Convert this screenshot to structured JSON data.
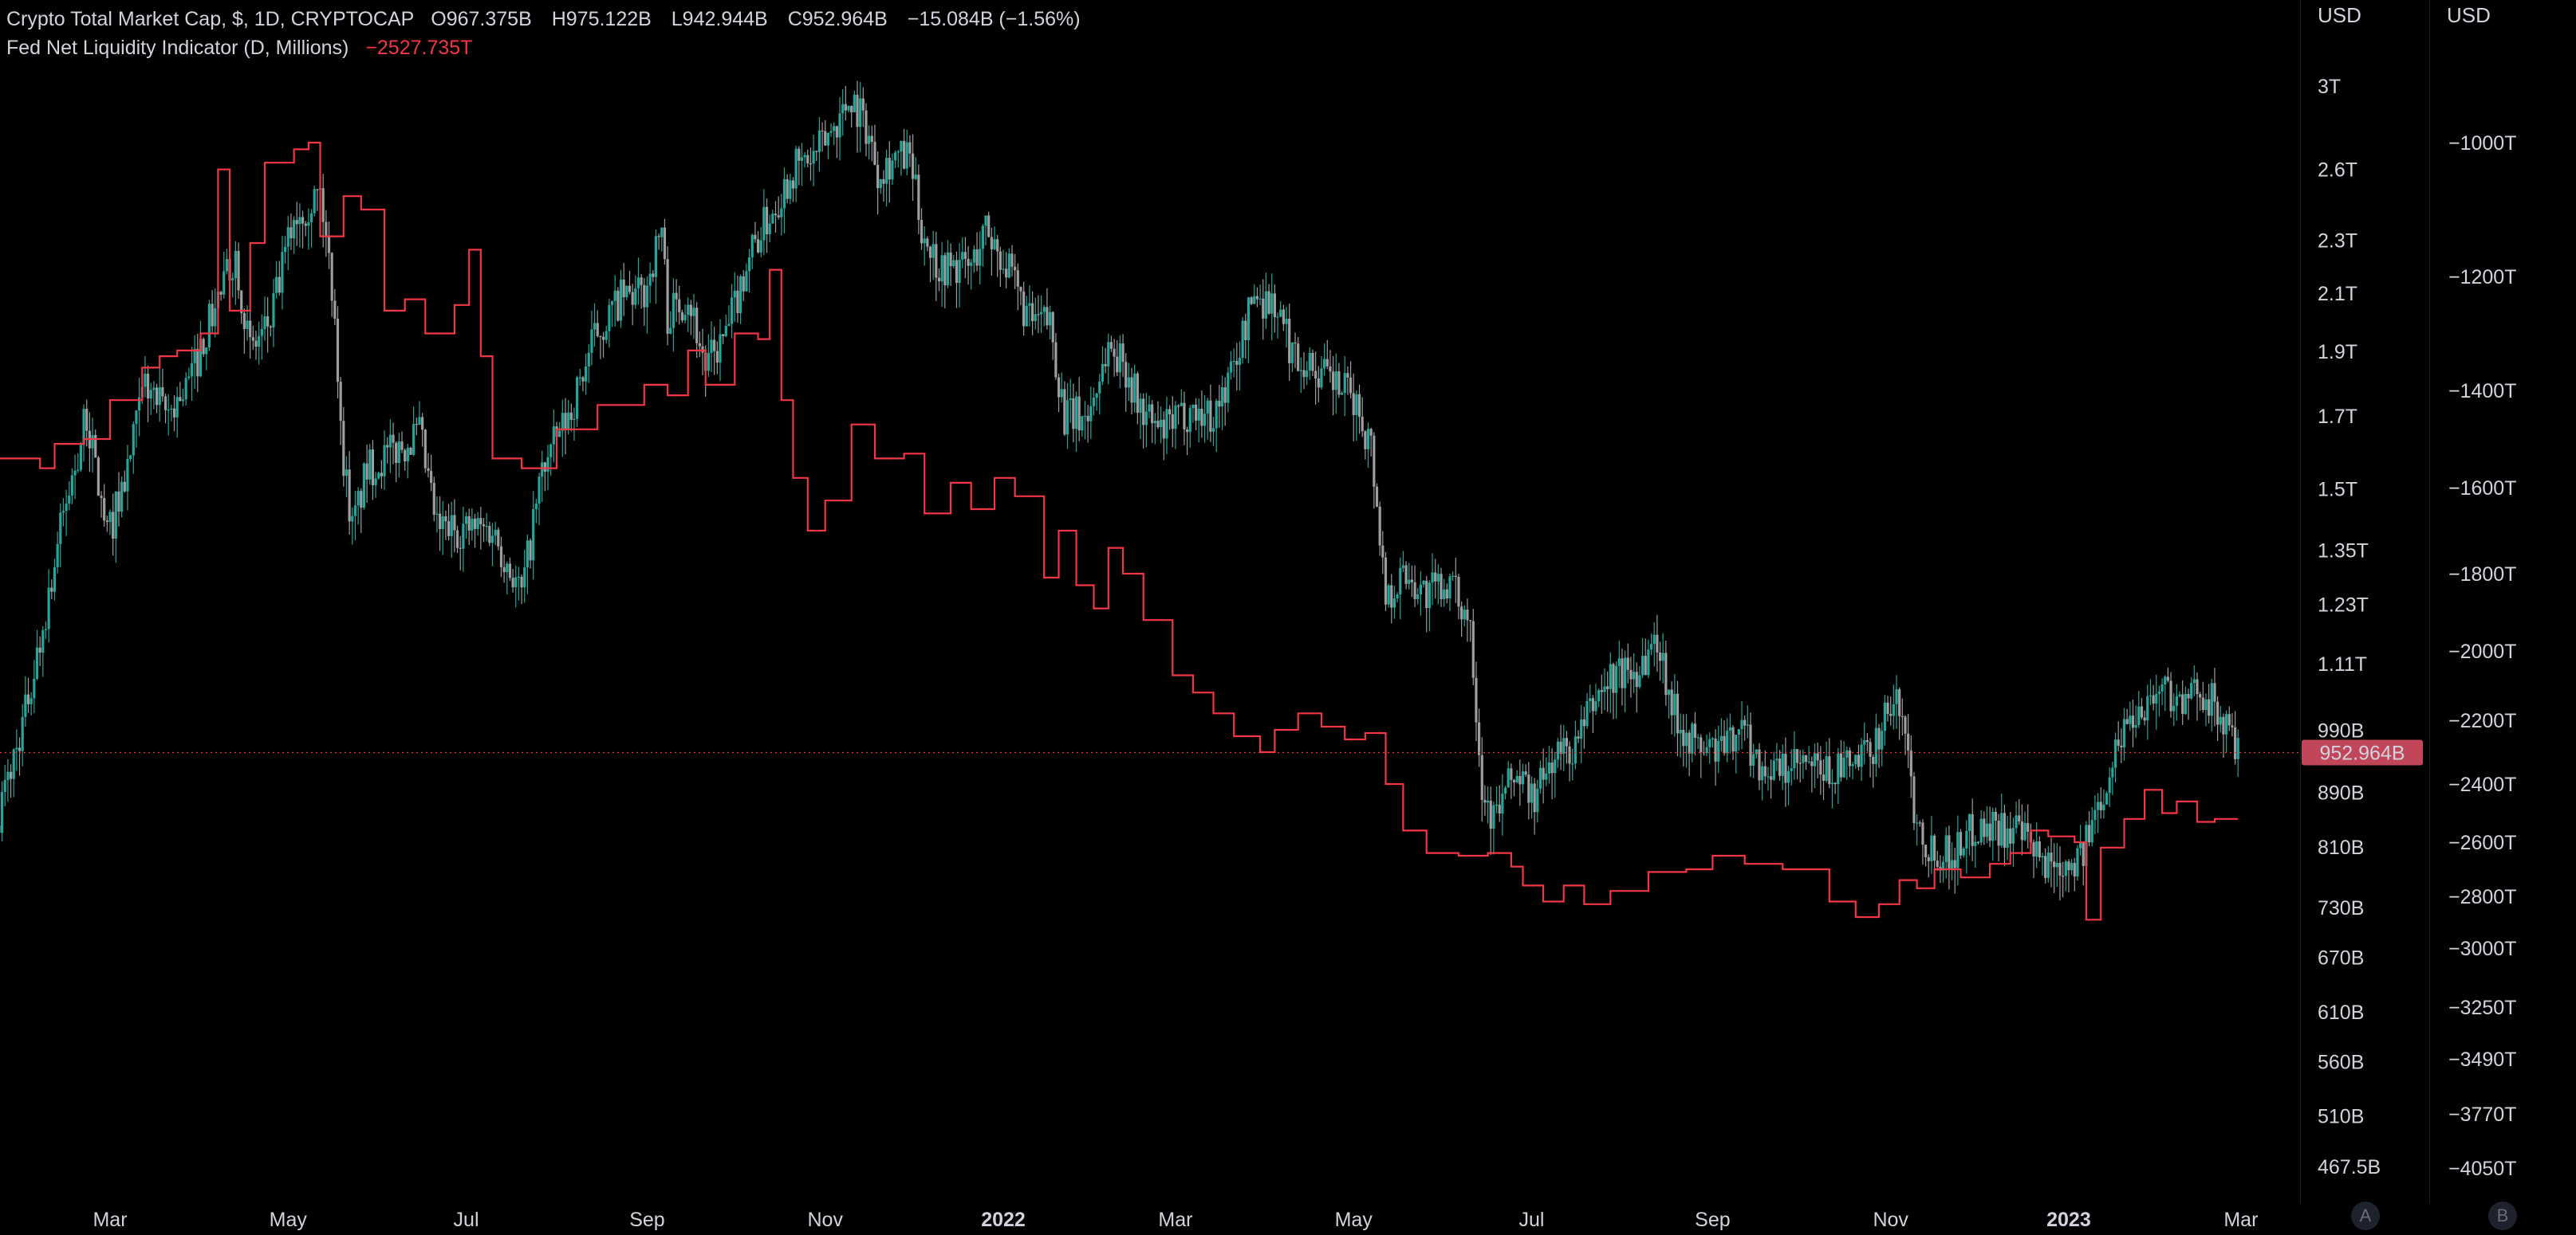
{
  "legend": {
    "symbol": "Crypto Total Market Cap, $, 1D, CRYPTOCAP",
    "open": "O967.375B",
    "high": "H975.122B",
    "low": "L942.944B",
    "close": "C952.964B",
    "change": "−15.084B (−1.56%)",
    "indicator": "Fed Net Liquidity Indicator (D, Millions)",
    "indicator_value": "−2527.735T"
  },
  "price_label": "952.964B",
  "scale_buttons": [
    "A",
    "B"
  ],
  "colors": {
    "background": "#000000",
    "candle_up": "#26a69a",
    "candle_down": "#9e9e9e",
    "liquidity_line": "#f23645",
    "price_label_bg": "#c2465a"
  },
  "chart_data": {
    "type": "line",
    "title": "Crypto Total Market Cap, $, 1D, CRYPTOCAP",
    "x_ticks": [
      {
        "label": "Mar",
        "date": "2021-03-01"
      },
      {
        "label": "May",
        "date": "2021-05-01"
      },
      {
        "label": "Jul",
        "date": "2021-07-01"
      },
      {
        "label": "Sep",
        "date": "2021-09-01"
      },
      {
        "label": "Nov",
        "date": "2021-11-01"
      },
      {
        "label": "2022",
        "date": "2022-01-01",
        "bold": true
      },
      {
        "label": "Mar",
        "date": "2022-03-01"
      },
      {
        "label": "May",
        "date": "2022-05-01"
      },
      {
        "label": "Jul",
        "date": "2022-07-01"
      },
      {
        "label": "Sep",
        "date": "2022-09-01"
      },
      {
        "label": "Nov",
        "date": "2022-11-01"
      },
      {
        "label": "2023",
        "date": "2023-01-01",
        "bold": true
      },
      {
        "label": "Mar",
        "date": "2023-03-01"
      }
    ],
    "left_axis": {
      "unit": "USD",
      "scale": "log",
      "range_usd_billions": [
        445,
        3160
      ],
      "tick_values": [
        3000,
        2600,
        2300,
        2100,
        1900,
        1700,
        1500,
        1350,
        1230,
        1110,
        990,
        890,
        810,
        730,
        670,
        610,
        560,
        510,
        467.5
      ],
      "tick_labels": [
        "3T",
        "2.6T",
        "2.3T",
        "2.1T",
        "1.9T",
        "1.7T",
        "1.5T",
        "1.35T",
        "1.23T",
        "1.11T",
        "990B",
        "890B",
        "810B",
        "730B",
        "670B",
        "610B",
        "560B",
        "510B",
        "467.5B"
      ]
    },
    "right_axis": {
      "unit": "USD",
      "tick_labels": [
        "−1000T",
        "−1200T",
        "−1400T",
        "−1600T",
        "−1800T",
        "−2000T",
        "−2200T",
        "−2400T",
        "−2600T",
        "−2800T",
        "−3000T",
        "−3250T",
        "−3490T",
        "−3770T",
        "−4050T"
      ]
    },
    "series": [
      {
        "name": "Crypto Total Market Cap, $, 1D, CRYPTOCAP",
        "style": "candles",
        "unit": "USD billions",
        "points": [
          [
            "2021-01-22",
            860
          ],
          [
            "2021-01-30",
            1000
          ],
          [
            "2021-02-05",
            1150
          ],
          [
            "2021-02-12",
            1400
          ],
          [
            "2021-02-21",
            1700
          ],
          [
            "2021-02-28",
            1380
          ],
          [
            "2021-03-07",
            1550
          ],
          [
            "2021-03-13",
            1800
          ],
          [
            "2021-03-20",
            1700
          ],
          [
            "2021-03-28",
            1800
          ],
          [
            "2021-04-04",
            2000
          ],
          [
            "2021-04-13",
            2250
          ],
          [
            "2021-04-18",
            1900
          ],
          [
            "2021-04-25",
            2000
          ],
          [
            "2021-05-03",
            2400
          ],
          [
            "2021-05-12",
            2500
          ],
          [
            "2021-05-17",
            2050
          ],
          [
            "2021-05-19",
            1650
          ],
          [
            "2021-05-23",
            1400
          ],
          [
            "2021-05-28",
            1550
          ],
          [
            "2021-06-06",
            1600
          ],
          [
            "2021-06-15",
            1650
          ],
          [
            "2021-06-21",
            1400
          ],
          [
            "2021-06-30",
            1400
          ],
          [
            "2021-07-10",
            1400
          ],
          [
            "2021-07-20",
            1250
          ],
          [
            "2021-07-27",
            1550
          ],
          [
            "2021-08-06",
            1720
          ],
          [
            "2021-08-14",
            1950
          ],
          [
            "2021-08-23",
            2080
          ],
          [
            "2021-08-31",
            2100
          ],
          [
            "2021-09-06",
            2350
          ],
          [
            "2021-09-08",
            2020
          ],
          [
            "2021-09-15",
            2100
          ],
          [
            "2021-09-21",
            1850
          ],
          [
            "2021-09-28",
            1950
          ],
          [
            "2021-10-06",
            2250
          ],
          [
            "2021-10-15",
            2450
          ],
          [
            "2021-10-21",
            2600
          ],
          [
            "2021-10-28",
            2650
          ],
          [
            "2021-11-04",
            2800
          ],
          [
            "2021-11-10",
            2950
          ],
          [
            "2021-11-15",
            2800
          ],
          [
            "2021-11-19",
            2600
          ],
          [
            "2021-11-24",
            2650
          ],
          [
            "2021-11-30",
            2650
          ],
          [
            "2021-12-04",
            2350
          ],
          [
            "2021-12-10",
            2200
          ],
          [
            "2021-12-15",
            2200
          ],
          [
            "2021-12-21",
            2200
          ],
          [
            "2021-12-26",
            2350
          ],
          [
            "2021-12-31",
            2250
          ],
          [
            "2022-01-04",
            2150
          ],
          [
            "2022-01-10",
            2000
          ],
          [
            "2022-01-17",
            2000
          ],
          [
            "2022-01-22",
            1700
          ],
          [
            "2022-01-30",
            1700
          ],
          [
            "2022-02-06",
            1920
          ],
          [
            "2022-02-12",
            1850
          ],
          [
            "2022-02-17",
            1720
          ],
          [
            "2022-02-24",
            1650
          ],
          [
            "2022-03-06",
            1720
          ],
          [
            "2022-03-14",
            1700
          ],
          [
            "2022-03-21",
            1850
          ],
          [
            "2022-03-28",
            2100
          ],
          [
            "2022-04-04",
            2060
          ],
          [
            "2022-04-10",
            1900
          ],
          [
            "2022-04-17",
            1850
          ],
          [
            "2022-04-24",
            1800
          ],
          [
            "2022-05-01",
            1750
          ],
          [
            "2022-05-07",
            1620
          ],
          [
            "2022-05-12",
            1250
          ],
          [
            "2022-05-19",
            1300
          ],
          [
            "2022-05-26",
            1250
          ],
          [
            "2022-06-02",
            1280
          ],
          [
            "2022-06-10",
            1200
          ],
          [
            "2022-06-14",
            900
          ],
          [
            "2022-06-18",
            850
          ],
          [
            "2022-06-25",
            920
          ],
          [
            "2022-07-02",
            880
          ],
          [
            "2022-07-09",
            950
          ],
          [
            "2022-07-16",
            960
          ],
          [
            "2022-07-23",
            1050
          ],
          [
            "2022-07-30",
            1090
          ],
          [
            "2022-08-06",
            1100
          ],
          [
            "2022-08-13",
            1160
          ],
          [
            "2022-08-19",
            1020
          ],
          [
            "2022-08-27",
            960
          ],
          [
            "2022-09-06",
            960
          ],
          [
            "2022-09-10",
            1010
          ],
          [
            "2022-09-16",
            940
          ],
          [
            "2022-09-22",
            920
          ],
          [
            "2022-10-01",
            930
          ],
          [
            "2022-10-10",
            920
          ],
          [
            "2022-10-18",
            930
          ],
          [
            "2022-10-25",
            950
          ],
          [
            "2022-10-31",
            1030
          ],
          [
            "2022-11-05",
            1030
          ],
          [
            "2022-11-09",
            870
          ],
          [
            "2022-11-14",
            810
          ],
          [
            "2022-11-22",
            800
          ],
          [
            "2022-11-30",
            840
          ],
          [
            "2022-12-08",
            840
          ],
          [
            "2022-12-15",
            830
          ],
          [
            "2022-12-22",
            790
          ],
          [
            "2022-12-30",
            790
          ],
          [
            "2023-01-06",
            800
          ],
          [
            "2023-01-13",
            900
          ],
          [
            "2023-01-20",
            1000
          ],
          [
            "2023-01-27",
            1040
          ],
          [
            "2023-02-03",
            1070
          ],
          [
            "2023-02-10",
            1030
          ],
          [
            "2023-02-15",
            1070
          ],
          [
            "2023-02-20",
            1030
          ],
          [
            "2023-02-26",
            975
          ],
          [
            "2023-02-28",
            953
          ]
        ]
      },
      {
        "name": "Fed Net Liquidity Indicator (D, Millions)",
        "style": "line",
        "points": [
          [
            "2021-01-22",
            -1540
          ],
          [
            "2021-02-05",
            -1560
          ],
          [
            "2021-02-10",
            -1510
          ],
          [
            "2021-02-20",
            -1500
          ],
          [
            "2021-03-01",
            -1420
          ],
          [
            "2021-03-12",
            -1360
          ],
          [
            "2021-03-18",
            -1340
          ],
          [
            "2021-03-24",
            -1330
          ],
          [
            "2021-04-01",
            -1300
          ],
          [
            "2021-04-07",
            -1040
          ],
          [
            "2021-04-11",
            -1260
          ],
          [
            "2021-04-18",
            -1150
          ],
          [
            "2021-04-23",
            -1030
          ],
          [
            "2021-05-03",
            -1010
          ],
          [
            "2021-05-08",
            -930
          ],
          [
            "2021-05-12",
            -1140
          ],
          [
            "2021-05-20",
            -1080
          ],
          [
            "2021-05-26",
            -1100
          ],
          [
            "2021-06-03",
            -1260
          ],
          [
            "2021-06-10",
            -1240
          ],
          [
            "2021-06-17",
            -1300
          ],
          [
            "2021-06-27",
            -1250
          ],
          [
            "2021-07-02",
            -1160
          ],
          [
            "2021-07-06",
            -1340
          ],
          [
            "2021-07-10",
            -1540
          ],
          [
            "2021-07-20",
            -1560
          ],
          [
            "2021-08-01",
            -1480
          ],
          [
            "2021-08-15",
            -1430
          ],
          [
            "2021-08-31",
            -1390
          ],
          [
            "2021-09-08",
            -1410
          ],
          [
            "2021-09-15",
            -1330
          ],
          [
            "2021-09-21",
            -1390
          ],
          [
            "2021-10-01",
            -1300
          ],
          [
            "2021-10-09",
            -1310
          ],
          [
            "2021-10-13",
            -1190
          ],
          [
            "2021-10-17",
            -1420
          ],
          [
            "2021-10-21",
            -1580
          ],
          [
            "2021-10-26",
            -1700
          ],
          [
            "2021-11-01",
            -1630
          ],
          [
            "2021-11-10",
            -1470
          ],
          [
            "2021-11-18",
            -1540
          ],
          [
            "2021-11-28",
            -1530
          ],
          [
            "2021-12-05",
            -1660
          ],
          [
            "2021-12-14",
            -1590
          ],
          [
            "2021-12-21",
            -1650
          ],
          [
            "2021-12-29",
            -1580
          ],
          [
            "2022-01-05",
            -1620
          ],
          [
            "2022-01-15",
            -1810
          ],
          [
            "2022-01-20",
            -1700
          ],
          [
            "2022-01-26",
            -1830
          ],
          [
            "2022-02-01",
            -1890
          ],
          [
            "2022-02-06",
            -1740
          ],
          [
            "2022-02-11",
            -1800
          ],
          [
            "2022-02-18",
            -1920
          ],
          [
            "2022-02-28",
            -2070
          ],
          [
            "2022-03-07",
            -2120
          ],
          [
            "2022-03-14",
            -2180
          ],
          [
            "2022-03-21",
            -2250
          ],
          [
            "2022-03-30",
            -2300
          ],
          [
            "2022-04-04",
            -2230
          ],
          [
            "2022-04-12",
            -2180
          ],
          [
            "2022-04-20",
            -2220
          ],
          [
            "2022-04-28",
            -2260
          ],
          [
            "2022-05-05",
            -2240
          ],
          [
            "2022-05-12",
            -2400
          ],
          [
            "2022-05-18",
            -2560
          ],
          [
            "2022-05-26",
            -2640
          ],
          [
            "2022-06-06",
            -2650
          ],
          [
            "2022-06-16",
            -2640
          ],
          [
            "2022-06-24",
            -2690
          ],
          [
            "2022-06-28",
            -2760
          ],
          [
            "2022-07-05",
            -2820
          ],
          [
            "2022-07-12",
            -2760
          ],
          [
            "2022-07-19",
            -2830
          ],
          [
            "2022-07-28",
            -2780
          ],
          [
            "2022-08-10",
            -2710
          ],
          [
            "2022-08-23",
            -2700
          ],
          [
            "2022-09-01",
            -2650
          ],
          [
            "2022-09-12",
            -2680
          ],
          [
            "2022-09-25",
            -2700
          ],
          [
            "2022-10-06",
            -2700
          ],
          [
            "2022-10-11",
            -2820
          ],
          [
            "2022-10-20",
            -2880
          ],
          [
            "2022-10-28",
            -2830
          ],
          [
            "2022-11-04",
            -2740
          ],
          [
            "2022-11-10",
            -2770
          ],
          [
            "2022-11-16",
            -2700
          ],
          [
            "2022-11-25",
            -2730
          ],
          [
            "2022-12-05",
            -2680
          ],
          [
            "2022-12-12",
            -2640
          ],
          [
            "2022-12-19",
            -2560
          ],
          [
            "2022-12-25",
            -2580
          ],
          [
            "2023-01-03",
            -2600
          ],
          [
            "2023-01-07",
            -2890
          ],
          [
            "2023-01-12",
            -2620
          ],
          [
            "2023-01-20",
            -2520
          ],
          [
            "2023-01-27",
            -2420
          ],
          [
            "2023-02-02",
            -2500
          ],
          [
            "2023-02-07",
            -2460
          ],
          [
            "2023-02-14",
            -2530
          ],
          [
            "2023-02-20",
            -2520
          ],
          [
            "2023-02-28",
            -2520
          ]
        ]
      }
    ],
    "price_line": {
      "value": 952.964,
      "label": "952.964B"
    },
    "grid": false,
    "legend": "top-left"
  }
}
